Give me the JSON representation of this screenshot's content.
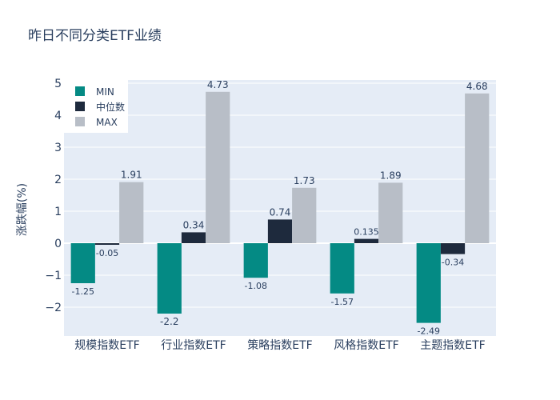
{
  "chart_data": {
    "type": "bar",
    "title": "昨日不同分类ETF业绩",
    "xlabel": "",
    "ylabel": "涨跌幅(%)",
    "categories": [
      "规模指数ETF",
      "行业指数ETF",
      "策略指数ETF",
      "风格指数ETF",
      "主题指数ETF"
    ],
    "series": [
      {
        "name": "MIN",
        "color": "#048a84",
        "values": [
          -1.25,
          -2.2,
          -1.08,
          -1.57,
          -2.49
        ],
        "labels": [
          "-1.25",
          "-2.2",
          "-1.08",
          "-1.57",
          "-2.49"
        ]
      },
      {
        "name": "中位数",
        "color": "#1e2a3d",
        "values": [
          -0.05,
          0.34,
          0.74,
          0.135,
          -0.34
        ],
        "labels": [
          "-0.05",
          "0.34",
          "0.74",
          "0.135",
          "-0.34"
        ]
      },
      {
        "name": "MAX",
        "color": "#b8bec7",
        "values": [
          1.91,
          4.73,
          1.73,
          1.89,
          4.68
        ],
        "labels": [
          "1.91",
          "4.73",
          "1.73",
          "1.89",
          "4.68"
        ]
      }
    ],
    "ylim": [
      -2.9,
      5.1
    ],
    "yticks": [
      -2,
      -1,
      0,
      1,
      2,
      3,
      4,
      5
    ],
    "ytick_labels": [
      "−2",
      "−1",
      "0",
      "1",
      "2",
      "3",
      "4",
      "5"
    ],
    "grid": true,
    "legend_position": "top-left"
  }
}
